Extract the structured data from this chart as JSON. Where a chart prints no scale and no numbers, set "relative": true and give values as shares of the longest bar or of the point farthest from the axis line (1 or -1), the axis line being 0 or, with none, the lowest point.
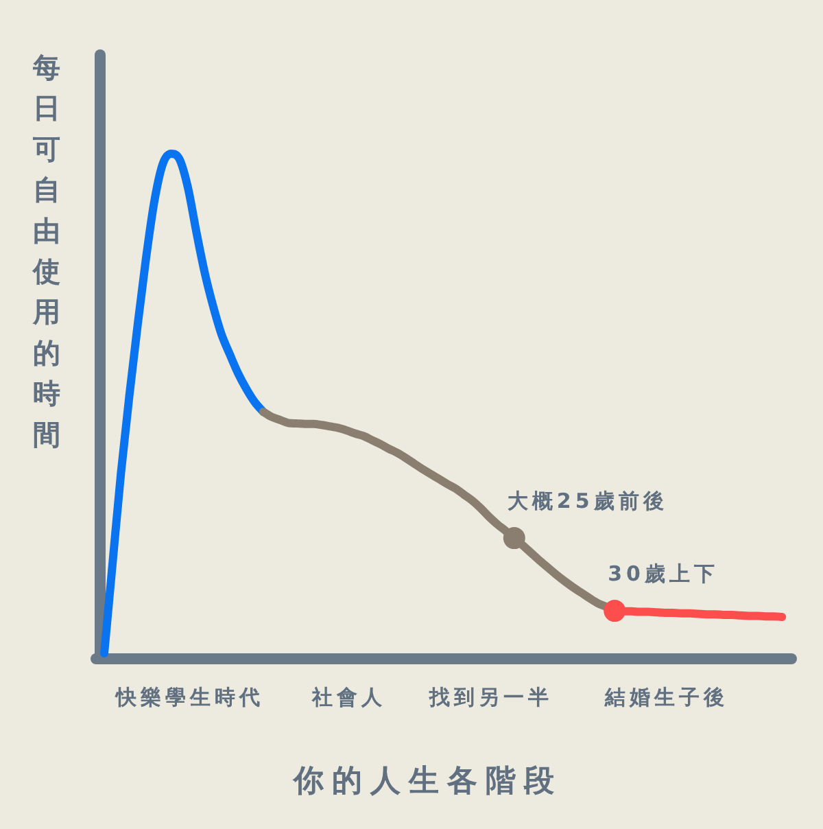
{
  "chart_data": {
    "type": "line",
    "relative": true,
    "xlabel": "你的人生各階段",
    "ylabel": "每日可自由使用的時間",
    "categories": [
      null,
      null,
      null,
      null,
      null,
      null,
      null,
      null,
      null,
      null,
      "快樂學生時代",
      null,
      null,
      null,
      null,
      null,
      null,
      null,
      null,
      null,
      null,
      null,
      null,
      null,
      null,
      null,
      null,
      null,
      null,
      "社會人",
      null,
      null,
      null,
      null,
      null,
      null,
      null,
      null,
      null,
      null,
      null,
      null,
      null,
      null,
      null,
      null,
      "找到另一半",
      null,
      null,
      null,
      null,
      null,
      null,
      null,
      null,
      null,
      null,
      null,
      null,
      null,
      null,
      null,
      null,
      null,
      null,
      null,
      null,
      "結婚生子後",
      null,
      null,
      null,
      null,
      null,
      null,
      null,
      null,
      null,
      null,
      null,
      null,
      null,
      null
    ],
    "series": [
      {
        "color": "#0a74f0",
        "values": [
          0.011,
          0.19,
          0.368,
          0.521,
          0.662,
          0.794,
          0.907,
          0.98,
          1.0,
          0.989,
          0.933,
          0.846,
          0.765,
          0.699,
          0.643,
          0.603,
          0.565,
          0.534,
          0.508,
          0.489,
          null,
          null,
          null,
          null,
          null,
          null,
          null,
          null,
          null,
          null,
          null,
          null,
          null,
          null,
          null,
          null,
          null,
          null,
          null,
          null,
          null,
          null,
          null,
          null,
          null,
          null,
          null,
          null,
          null,
          null,
          null,
          null,
          null,
          null,
          null,
          null,
          null,
          null,
          null,
          null,
          null,
          null,
          null,
          null,
          null,
          null,
          null,
          null,
          null,
          null,
          null,
          null,
          null,
          null,
          null,
          null,
          null,
          null,
          null,
          null,
          null,
          null
        ]
      },
      {
        "color": "#8a7e70",
        "values": [
          null,
          null,
          null,
          null,
          null,
          null,
          null,
          null,
          null,
          null,
          null,
          null,
          null,
          null,
          null,
          null,
          null,
          null,
          null,
          0.489,
          0.479,
          0.473,
          0.467,
          0.466,
          0.465,
          0.465,
          0.463,
          0.46,
          0.457,
          0.452,
          0.446,
          0.441,
          0.433,
          0.425,
          0.416,
          0.408,
          0.398,
          0.387,
          0.376,
          0.366,
          0.356,
          0.346,
          0.337,
          0.325,
          0.313,
          0.298,
          0.281,
          0.266,
          0.253,
          0.239,
          0.225,
          0.21,
          0.195,
          0.181,
          0.167,
          0.154,
          0.142,
          0.131,
          0.12,
          0.11,
          0.103,
          0.095,
          null,
          null,
          null,
          null,
          null,
          null,
          null,
          null,
          null,
          null,
          null,
          null,
          null,
          null,
          null,
          null,
          null,
          null,
          null,
          null
        ]
      },
      {
        "color": "#fd4e4e",
        "values": [
          null,
          null,
          null,
          null,
          null,
          null,
          null,
          null,
          null,
          null,
          null,
          null,
          null,
          null,
          null,
          null,
          null,
          null,
          null,
          null,
          null,
          null,
          null,
          null,
          null,
          null,
          null,
          null,
          null,
          null,
          null,
          null,
          null,
          null,
          null,
          null,
          null,
          null,
          null,
          null,
          null,
          null,
          null,
          null,
          null,
          null,
          null,
          null,
          null,
          null,
          null,
          null,
          null,
          null,
          null,
          null,
          null,
          null,
          null,
          null,
          null,
          0.095,
          0.094,
          0.094,
          0.093,
          0.093,
          0.092,
          0.091,
          0.091,
          0.09,
          0.09,
          0.089,
          0.088,
          0.088,
          0.087,
          0.087,
          0.086,
          0.085,
          0.085,
          0.084,
          0.084,
          0.083
        ]
      },
      {
        "type": "scatter",
        "color": "#8a7e70",
        "values": [
          null,
          null,
          null,
          null,
          null,
          null,
          null,
          null,
          null,
          null,
          null,
          null,
          null,
          null,
          null,
          null,
          null,
          null,
          null,
          null,
          null,
          null,
          null,
          null,
          null,
          null,
          null,
          null,
          null,
          null,
          null,
          null,
          null,
          null,
          null,
          null,
          null,
          null,
          null,
          null,
          null,
          null,
          null,
          null,
          null,
          null,
          null,
          null,
          null,
          0.239,
          null,
          null,
          null,
          null,
          null,
          null,
          null,
          null,
          null,
          null,
          null,
          null,
          null,
          null,
          null,
          null,
          null,
          null,
          null,
          null,
          null,
          null,
          null,
          null,
          null,
          null,
          null,
          null,
          null,
          null,
          null,
          null
        ]
      },
      {
        "type": "scatter",
        "color": "#fd4e4e",
        "values": [
          null,
          null,
          null,
          null,
          null,
          null,
          null,
          null,
          null,
          null,
          null,
          null,
          null,
          null,
          null,
          null,
          null,
          null,
          null,
          null,
          null,
          null,
          null,
          null,
          null,
          null,
          null,
          null,
          null,
          null,
          null,
          null,
          null,
          null,
          null,
          null,
          null,
          null,
          null,
          null,
          null,
          null,
          null,
          null,
          null,
          null,
          null,
          null,
          null,
          null,
          null,
          null,
          null,
          null,
          null,
          null,
          null,
          null,
          null,
          null,
          null,
          0.095,
          null,
          null,
          null,
          null,
          null,
          null,
          null,
          null,
          null,
          null,
          null,
          null,
          null,
          null,
          null,
          null,
          null,
          null,
          null,
          null
        ]
      }
    ],
    "annotations": [
      "大概25歲前後",
      "30歲上下"
    ]
  }
}
